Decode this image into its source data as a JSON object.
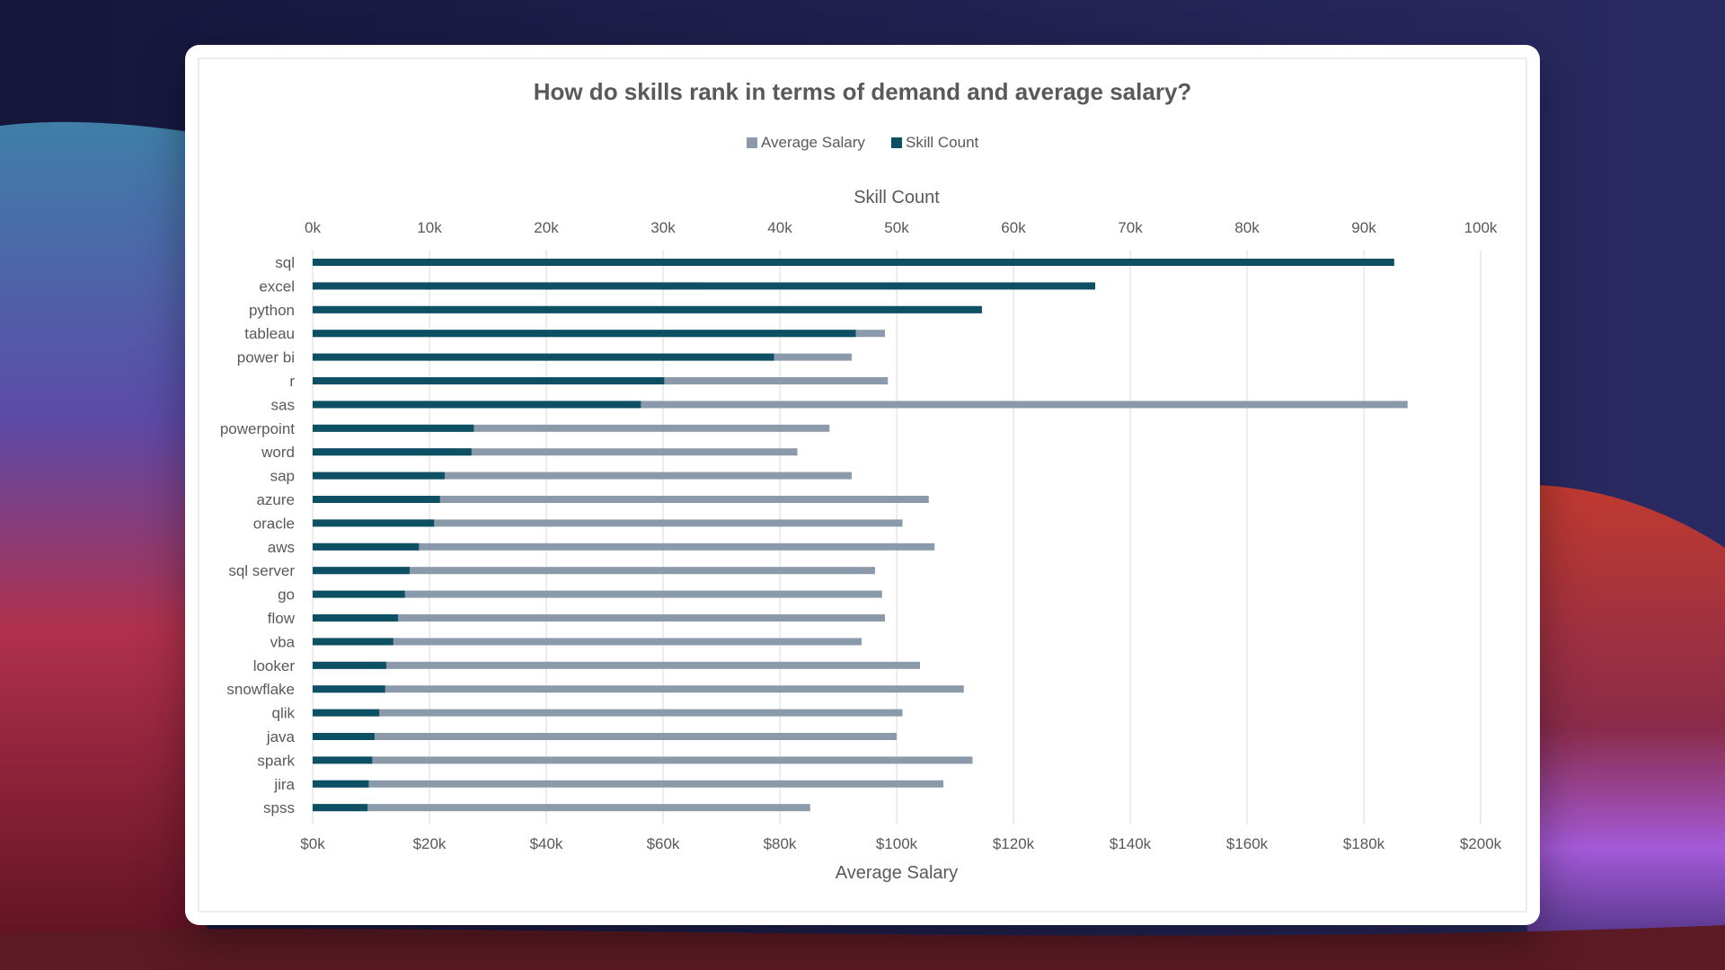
{
  "chart_data": {
    "type": "bar",
    "orientation": "horizontal",
    "title": "How do skills rank in terms of demand and average salary?",
    "legend": {
      "placement": "top",
      "entries": [
        "Average Salary",
        "Skill Count"
      ]
    },
    "categories": [
      "sql",
      "excel",
      "python",
      "tableau",
      "power bi",
      "r",
      "sas",
      "powerpoint",
      "word",
      "sap",
      "azure",
      "oracle",
      "aws",
      "sql server",
      "go",
      "flow",
      "vba",
      "looker",
      "snowflake",
      "qlik",
      "java",
      "spark",
      "jira",
      "spss"
    ],
    "series": [
      {
        "name": "Average Salary",
        "axis": "bottom",
        "color": "#8a9aaa",
        "values": [
          92000,
          67000,
          114500,
          98000,
          92300,
          98500,
          187500,
          88500,
          83000,
          92300,
          105500,
          101000,
          106500,
          96300,
          97500,
          98000,
          94000,
          104000,
          111500,
          101000,
          100000,
          113000,
          108000,
          85200
        ]
      },
      {
        "name": "Skill Count",
        "axis": "top",
        "color": "#0d4f63",
        "values": [
          92600,
          67000,
          57300,
          46500,
          39500,
          30100,
          28100,
          13800,
          13600,
          11300,
          10900,
          10400,
          9100,
          8300,
          7900,
          7300,
          6900,
          6300,
          6200,
          5700,
          5300,
          5100,
          4800,
          4700
        ]
      }
    ],
    "x_bottom": {
      "label": "Average Salary",
      "range": [
        0,
        200000
      ],
      "ticks": [
        "$0k",
        "$20k",
        "$40k",
        "$60k",
        "$80k",
        "$100k",
        "$120k",
        "$140k",
        "$160k",
        "$180k",
        "$200k"
      ]
    },
    "x_top": {
      "label": "Skill Count",
      "range": [
        0,
        100000
      ],
      "ticks": [
        "0k",
        "10k",
        "20k",
        "30k",
        "40k",
        "50k",
        "60k",
        "70k",
        "80k",
        "90k",
        "100k"
      ]
    },
    "grid": "vertical"
  }
}
